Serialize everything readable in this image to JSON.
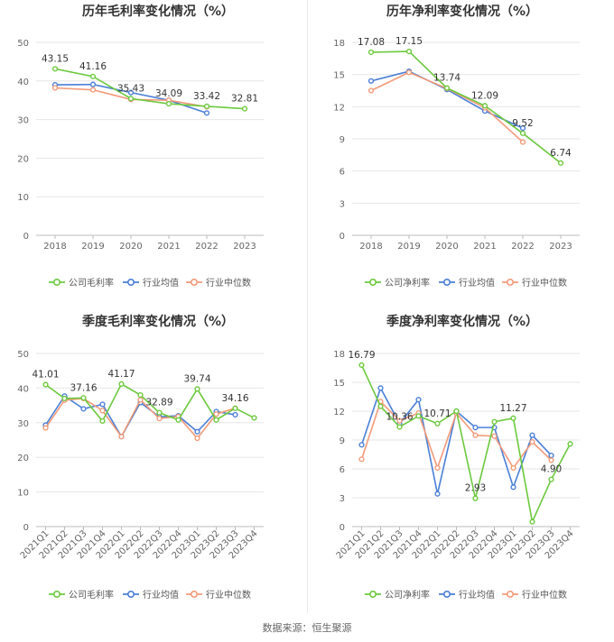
{
  "source": "数据来源：恒生聚源",
  "colors": {
    "company": "#6cc93d",
    "avg": "#4a7fd6",
    "median": "#f29a79"
  },
  "chart_data": [
    {
      "type": "line",
      "title": "历年毛利率变化情况（%）",
      "categories": [
        "2018",
        "2019",
        "2020",
        "2021",
        "2022",
        "2023"
      ],
      "ylim": [
        0,
        50
      ],
      "yticks": [
        0,
        10,
        20,
        30,
        40,
        50
      ],
      "series": [
        {
          "name": "公司毛利率",
          "key": "company",
          "values": [
            43.15,
            41.16,
            35.43,
            34.09,
            33.42,
            32.81
          ],
          "labels": [
            "43.15",
            "41.16",
            "35.43",
            "34.09",
            "33.42",
            "32.81"
          ]
        },
        {
          "name": "行业均值",
          "key": "avg",
          "values": [
            39.0,
            39.1,
            37.0,
            35.0,
            31.7,
            null
          ]
        },
        {
          "name": "行业中位数",
          "key": "median",
          "values": [
            38.2,
            37.7,
            35.2,
            35.0,
            33.3,
            null
          ]
        }
      ]
    },
    {
      "type": "line",
      "title": "历年净利率变化情况（%）",
      "categories": [
        "2018",
        "2019",
        "2020",
        "2021",
        "2022",
        "2023"
      ],
      "ylim": [
        0,
        18
      ],
      "yticks": [
        0,
        3,
        6,
        9,
        12,
        15,
        18
      ],
      "series": [
        {
          "name": "公司净利率",
          "key": "company",
          "values": [
            17.08,
            17.15,
            13.74,
            12.09,
            9.52,
            6.74
          ],
          "labels": [
            "17.08",
            "17.15",
            "13.74",
            "12.09",
            "9.52",
            "6.74"
          ]
        },
        {
          "name": "行业均值",
          "key": "avg",
          "values": [
            14.4,
            15.3,
            13.6,
            11.6,
            10.0,
            null
          ]
        },
        {
          "name": "行业中位数",
          "key": "median",
          "values": [
            13.5,
            15.2,
            13.7,
            11.9,
            8.7,
            null
          ]
        }
      ]
    },
    {
      "type": "line",
      "title": "季度毛利率变化情况（%）",
      "categories": [
        "2021Q1",
        "2021Q2",
        "2021Q3",
        "2021Q4",
        "2022Q1",
        "2022Q2",
        "2022Q3",
        "2022Q4",
        "2023Q1",
        "2023Q2",
        "2023Q3",
        "2023Q4"
      ],
      "ylim": [
        0,
        50
      ],
      "yticks": [
        0,
        10,
        20,
        30,
        40,
        50
      ],
      "series": [
        {
          "name": "公司毛利率",
          "key": "company",
          "values": [
            41.01,
            37.0,
            37.16,
            30.5,
            41.17,
            38.0,
            32.89,
            30.8,
            39.74,
            30.8,
            34.16,
            31.4
          ],
          "labels": [
            "41.01",
            "",
            "37.16",
            "",
            "41.17",
            "",
            "32.89",
            "",
            "39.74",
            "",
            "34.16",
            ""
          ]
        },
        {
          "name": "行业均值",
          "key": "avg",
          "values": [
            29.3,
            37.7,
            34.0,
            35.3,
            26.0,
            35.8,
            31.7,
            32.0,
            27.4,
            33.2,
            32.3,
            null
          ]
        },
        {
          "name": "行业中位数",
          "key": "median",
          "values": [
            28.5,
            36.5,
            37.0,
            33.5,
            26.0,
            36.6,
            31.2,
            31.8,
            25.5,
            32.5,
            34.2,
            null
          ]
        }
      ]
    },
    {
      "type": "line",
      "title": "季度净利率变化情况（%）",
      "categories": [
        "2021Q1",
        "2021Q2",
        "2021Q3",
        "2021Q4",
        "2022Q1",
        "2022Q2",
        "2022Q3",
        "2022Q4",
        "2023Q1",
        "2023Q2",
        "2023Q3",
        "2023Q4"
      ],
      "ylim": [
        0,
        18
      ],
      "yticks": [
        0,
        3,
        6,
        9,
        12,
        15,
        18
      ],
      "series": [
        {
          "name": "公司净利率",
          "key": "company",
          "values": [
            16.79,
            12.5,
            10.36,
            11.5,
            10.71,
            12.0,
            2.93,
            10.9,
            11.27,
            0.5,
            4.9,
            8.6
          ],
          "labels": [
            "16.79",
            "",
            "10.36",
            "",
            "10.71",
            "",
            "2.93",
            "",
            "11.27",
            "",
            "4.90",
            ""
          ]
        },
        {
          "name": "行业均值",
          "key": "avg",
          "values": [
            8.5,
            14.4,
            10.7,
            13.2,
            3.4,
            12.0,
            10.3,
            10.3,
            4.1,
            9.5,
            7.4,
            null
          ]
        },
        {
          "name": "行业中位数",
          "key": "median",
          "values": [
            7.0,
            13.0,
            11.0,
            11.8,
            6.1,
            11.8,
            9.5,
            9.4,
            6.1,
            8.8,
            6.9,
            null
          ]
        }
      ]
    }
  ]
}
